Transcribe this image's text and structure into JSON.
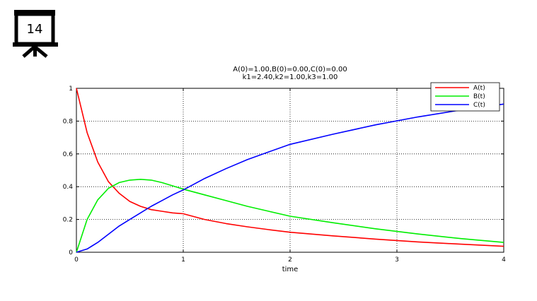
{
  "slide_badge": {
    "number": "14",
    "icon": "presentation-board-icon"
  },
  "chart_data": {
    "type": "line",
    "title": [
      "A(0)=1.00,B(0)=0.00,C(0)=0.00",
      "k1=2.40,k2=1.00,k3=1.00"
    ],
    "xlabel": "time",
    "ylabel": "",
    "xlim": [
      0,
      4
    ],
    "ylim": [
      0,
      1
    ],
    "xticks": [
      0,
      1,
      2,
      3,
      4
    ],
    "yticks": [
      0,
      0.2,
      0.4,
      0.6,
      0.8,
      1
    ],
    "xtick_labels": [
      "0",
      "1",
      "2",
      "3",
      "4"
    ],
    "ytick_labels": [
      "0",
      "0.2",
      "0.4",
      "0.6",
      "0.8",
      "1"
    ],
    "grid": true,
    "legend_position": "top-right",
    "x": [
      0,
      0.1,
      0.2,
      0.3,
      0.4,
      0.5,
      0.6,
      0.7,
      0.8,
      0.9,
      1.0,
      1.2,
      1.4,
      1.6,
      1.8,
      2.0,
      2.4,
      2.8,
      3.2,
      3.6,
      4.0
    ],
    "series": [
      {
        "name": "A(t)",
        "color": "#ff0000",
        "values": [
          1.0,
          0.73,
          0.55,
          0.43,
          0.36,
          0.31,
          0.28,
          0.26,
          0.25,
          0.24,
          0.235,
          0.2,
          0.175,
          0.155,
          0.138,
          0.122,
          0.1,
          0.08,
          0.063,
          0.049,
          0.036
        ]
      },
      {
        "name": "B(t)",
        "color": "#00ee00",
        "values": [
          0.0,
          0.2,
          0.32,
          0.39,
          0.425,
          0.44,
          0.445,
          0.44,
          0.425,
          0.405,
          0.385,
          0.35,
          0.315,
          0.28,
          0.25,
          0.22,
          0.18,
          0.143,
          0.111,
          0.083,
          0.06
        ]
      },
      {
        "name": "C(t)",
        "color": "#0000ff",
        "values": [
          0.0,
          0.02,
          0.06,
          0.11,
          0.16,
          0.2,
          0.24,
          0.28,
          0.315,
          0.35,
          0.38,
          0.45,
          0.51,
          0.565,
          0.612,
          0.658,
          0.72,
          0.777,
          0.826,
          0.868,
          0.904
        ]
      }
    ]
  }
}
